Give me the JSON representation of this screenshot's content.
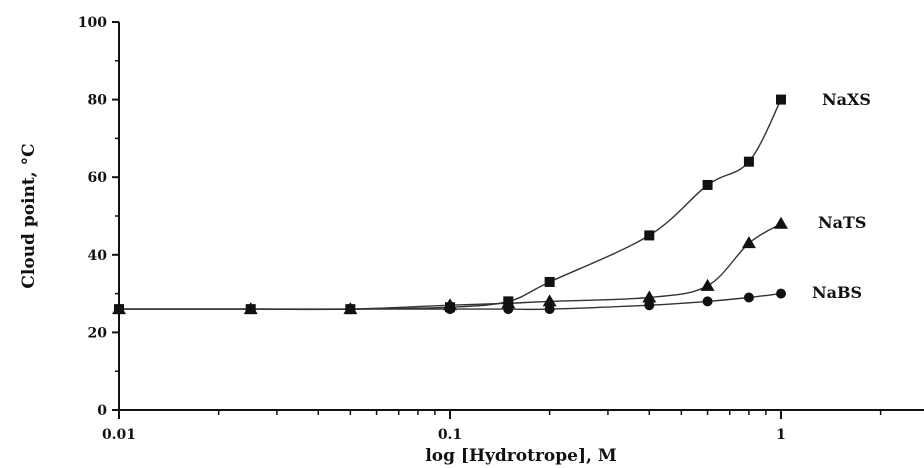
{
  "chart_data": {
    "type": "scatter",
    "xscale": "log",
    "xlim": [
      0.01,
      3
    ],
    "ylim": [
      0,
      100
    ],
    "xlabel": "log [Hydrotrope], M",
    "ylabel": "Cloud point, °C",
    "xticks": [
      {
        "value": 0.01,
        "label": "0.01"
      },
      {
        "value": 0.1,
        "label": "0.1"
      },
      {
        "value": 1,
        "label": "1"
      }
    ],
    "yticks": [
      {
        "value": 0,
        "label": "0"
      },
      {
        "value": 20,
        "label": "20"
      },
      {
        "value": 40,
        "label": "40"
      },
      {
        "value": 60,
        "label": "60"
      },
      {
        "value": 80,
        "label": "80"
      },
      {
        "value": 100,
        "label": "100"
      }
    ],
    "grid": false,
    "series": [
      {
        "name": "NaXS",
        "marker": "square",
        "x": [
          0.01,
          0.025,
          0.05,
          0.1,
          0.15,
          0.2,
          0.4,
          0.6,
          0.8,
          1.0
        ],
        "y": [
          26,
          26,
          26,
          26.5,
          28,
          33,
          45,
          58,
          64,
          80
        ]
      },
      {
        "name": "NaTS",
        "marker": "triangle",
        "x": [
          0.01,
          0.025,
          0.05,
          0.1,
          0.15,
          0.2,
          0.4,
          0.6,
          0.8,
          1.0
        ],
        "y": [
          26,
          26,
          26,
          27,
          27.5,
          28,
          29,
          32,
          43,
          48
        ]
      },
      {
        "name": "NaBS",
        "marker": "circle",
        "x": [
          0.01,
          0.025,
          0.05,
          0.1,
          0.15,
          0.2,
          0.4,
          0.6,
          0.8,
          1.0
        ],
        "y": [
          26,
          26,
          26,
          26,
          26,
          26,
          27,
          28,
          29,
          30
        ]
      }
    ]
  }
}
